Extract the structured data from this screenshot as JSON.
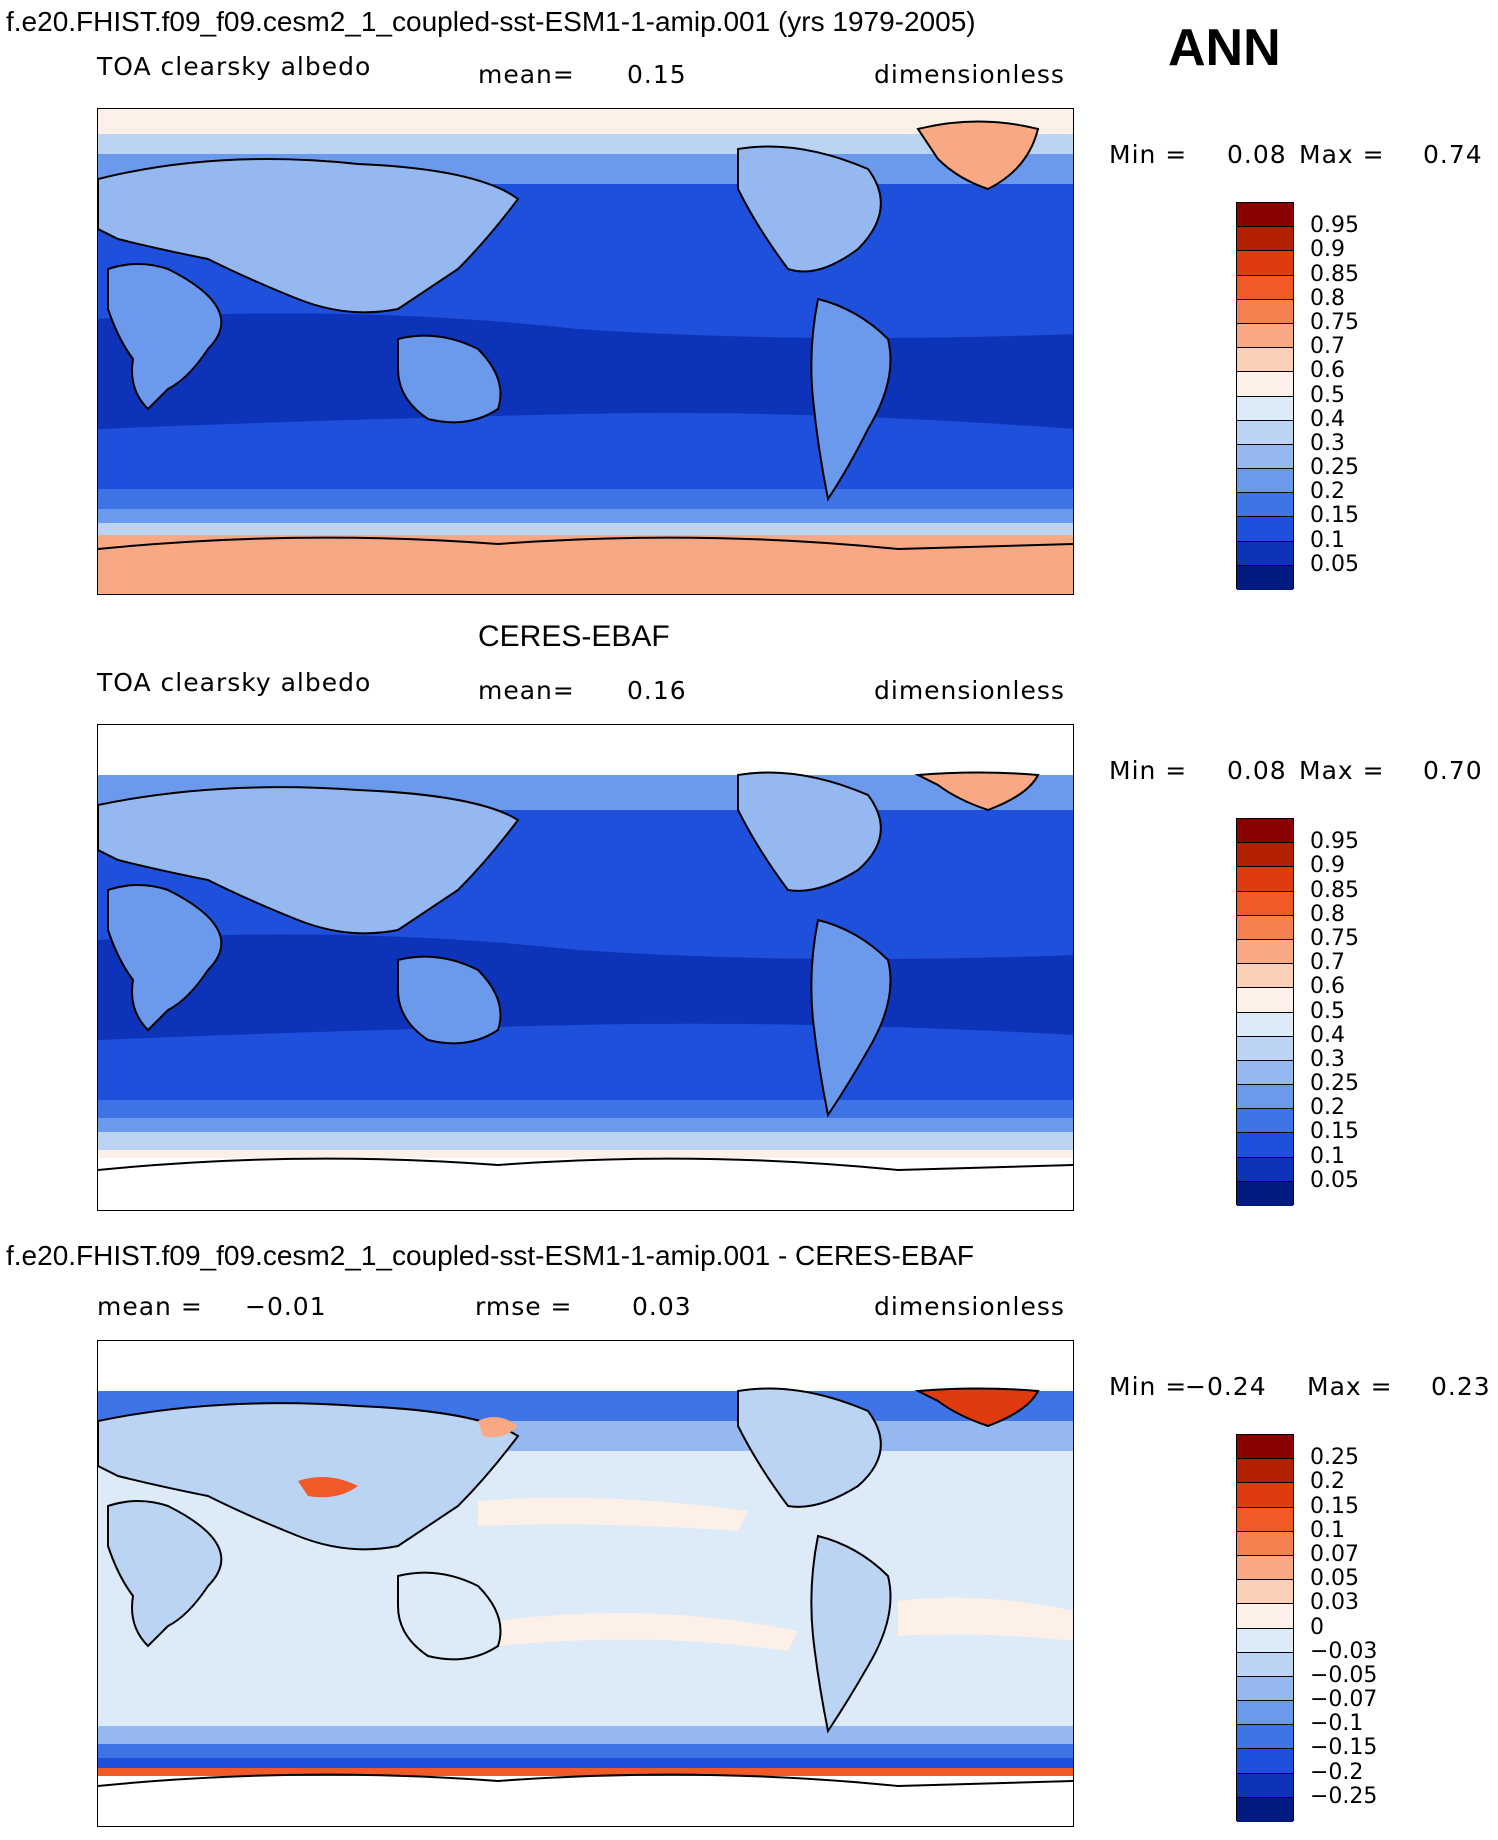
{
  "main_title": "f.e20.FHIST.f09_f09.cesm2_1_coupled-sst-ESM1-1-amip.001 (yrs 1979-2005)",
  "season": "ANN",
  "panel1": {
    "variable": "TOA clearsky albedo",
    "mean_label": "mean=",
    "mean_value": "0.15",
    "units": "dimensionless",
    "min_label": "Min =",
    "min_value": "0.08",
    "max_label": "Max =",
    "max_value": "0.74",
    "levels": [
      "0.95",
      "0.9",
      "0.85",
      "0.8",
      "0.75",
      "0.7",
      "0.6",
      "0.5",
      "0.4",
      "0.3",
      "0.25",
      "0.2",
      "0.15",
      "0.1",
      "0.05"
    ],
    "colors": [
      "#8b0000",
      "#b22000",
      "#e03a10",
      "#f05a28",
      "#f58050",
      "#f8a883",
      "#fcd0b8",
      "#fdf0e8",
      "#ddeaf8",
      "#bcd4f4",
      "#96b8f0",
      "#6b9aec",
      "#3e74e6",
      "#1e50dc",
      "#0d34b8",
      "#001c80"
    ]
  },
  "panel2_header": "CERES-EBAF",
  "panel2": {
    "variable": "TOA clearsky albedo",
    "mean_label": "mean=",
    "mean_value": "0.16",
    "units": "dimensionless",
    "min_label": "Min =",
    "min_value": "0.08",
    "max_label": "Max =",
    "max_value": "0.70",
    "levels": [
      "0.95",
      "0.9",
      "0.85",
      "0.8",
      "0.75",
      "0.7",
      "0.6",
      "0.5",
      "0.4",
      "0.3",
      "0.25",
      "0.2",
      "0.15",
      "0.1",
      "0.05"
    ],
    "colors": [
      "#8b0000",
      "#b22000",
      "#e03a10",
      "#f05a28",
      "#f58050",
      "#f8a883",
      "#fcd0b8",
      "#fdf0e8",
      "#ddeaf8",
      "#bcd4f4",
      "#96b8f0",
      "#6b9aec",
      "#3e74e6",
      "#1e50dc",
      "#0d34b8",
      "#001c80"
    ]
  },
  "diff_title": "f.e20.FHIST.f09_f09.cesm2_1_coupled-sst-ESM1-1-amip.001 - CERES-EBAF",
  "panel3": {
    "mean_label": "mean =",
    "mean_value": "−0.01",
    "rmse_label": "rmse =",
    "rmse_value": "0.03",
    "units": "dimensionless",
    "min_label": "Min =",
    "min_value": "−0.24",
    "max_label": "Max =",
    "max_value": "0.23",
    "levels": [
      "0.25",
      "0.2",
      "0.15",
      "0.1",
      "0.07",
      "0.05",
      "0.03",
      "0",
      "−0.03",
      "−0.05",
      "−0.07",
      "−0.1",
      "−0.15",
      "−0.2",
      "−0.25"
    ],
    "colors": [
      "#8b0000",
      "#b22000",
      "#e03a10",
      "#f05a28",
      "#f58050",
      "#f8a883",
      "#fcd0b8",
      "#fdf0e8",
      "#ddeaf8",
      "#bcd4f4",
      "#96b8f0",
      "#6b9aec",
      "#3e74e6",
      "#1e50dc",
      "#0d34b8",
      "#001c80"
    ]
  }
}
